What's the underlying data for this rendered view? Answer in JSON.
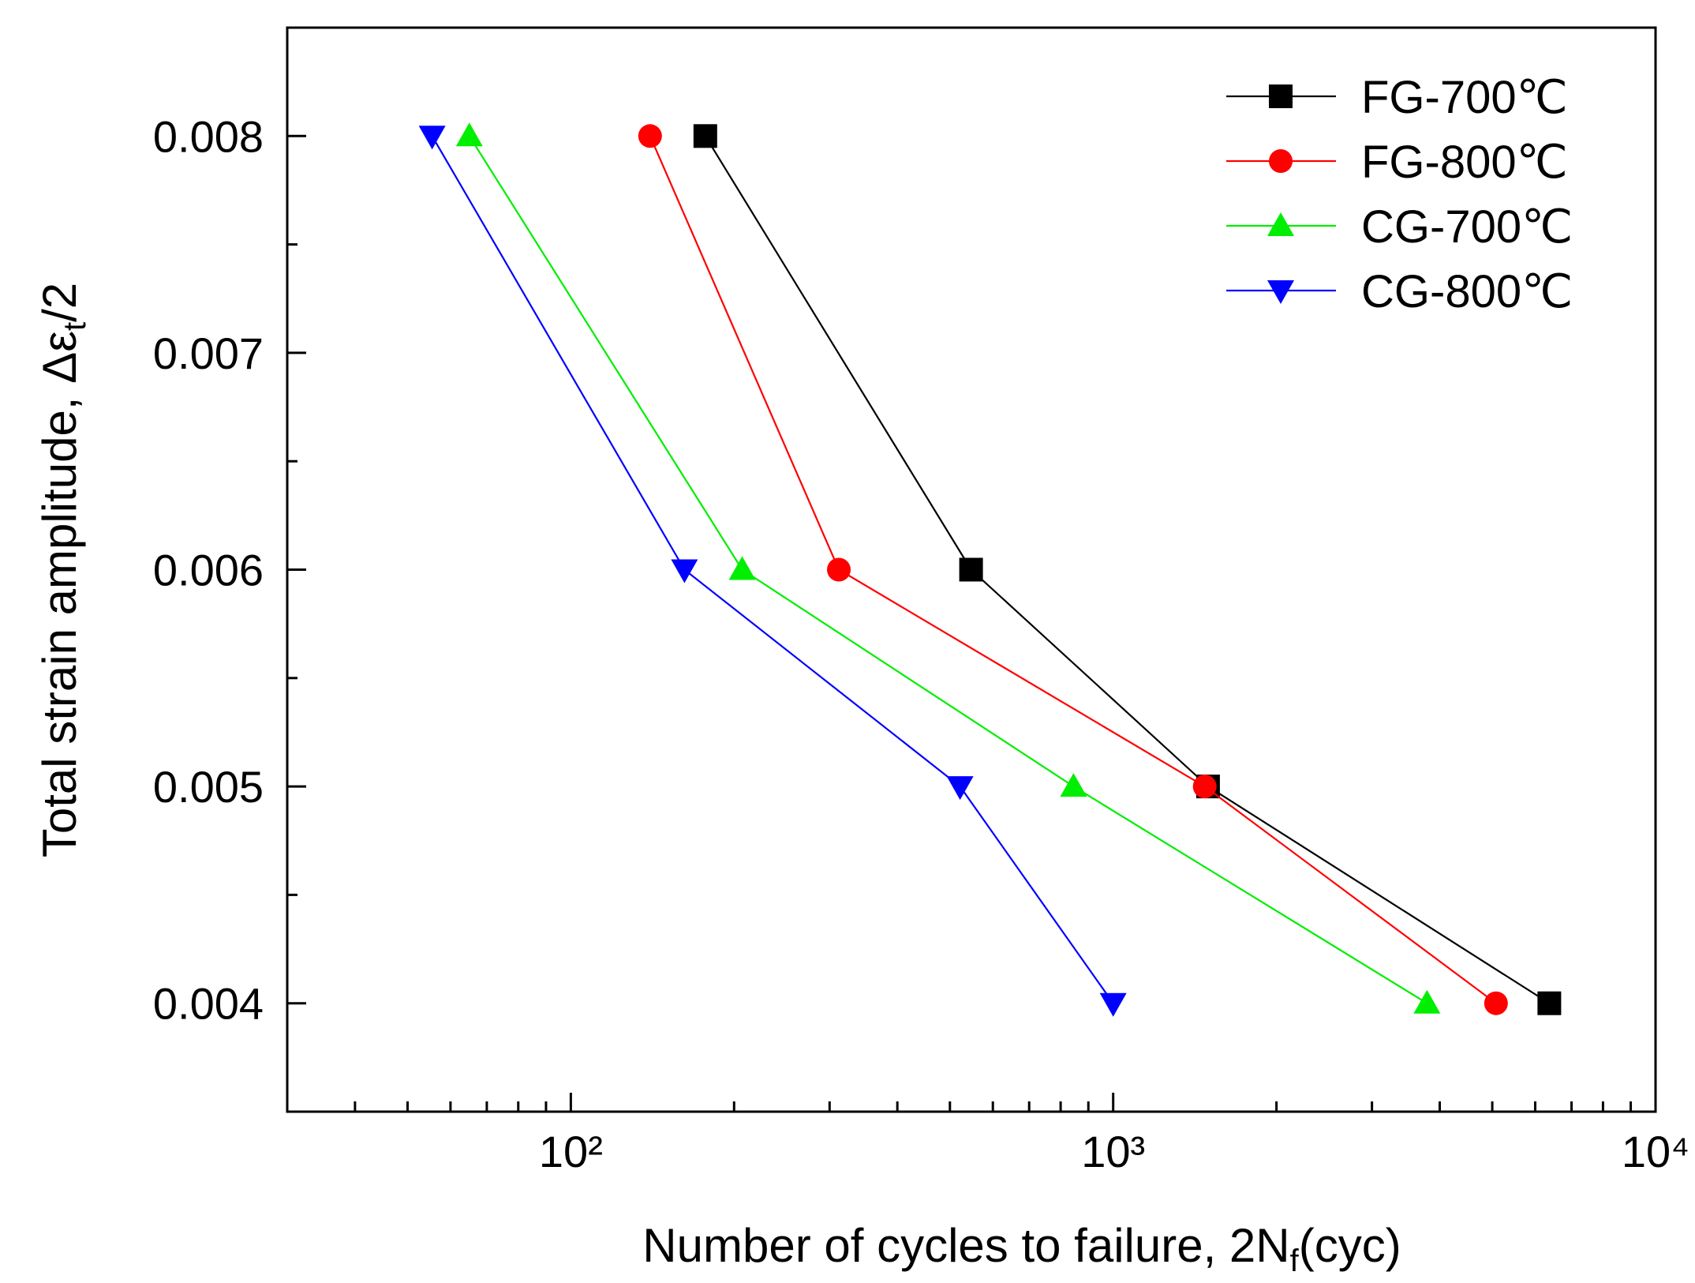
{
  "chart_data": {
    "type": "line",
    "xlabel": [
      "Number of cycles to failure, 2N",
      "f",
      "(cyc)"
    ],
    "ylabel": [
      "Total strain amplitude, Δε",
      "t",
      "/2"
    ],
    "xscale": "log",
    "xlim": [
      30,
      10000
    ],
    "xticks": [
      {
        "value": 100,
        "label": "10²"
      },
      {
        "value": 1000,
        "label": "10³"
      },
      {
        "value": 10000,
        "label": "10⁴"
      }
    ],
    "xminorticks": [
      40,
      50,
      60,
      70,
      80,
      90,
      200,
      300,
      400,
      500,
      600,
      700,
      800,
      900,
      2000,
      3000,
      4000,
      5000,
      6000,
      7000,
      8000,
      9000
    ],
    "ylim": [
      0.0035,
      0.0085
    ],
    "yticks": [
      0.004,
      0.005,
      0.006,
      0.007,
      0.008
    ],
    "yminorticks": [
      0.0045,
      0.0055,
      0.0065,
      0.0075
    ],
    "legend": "upper right",
    "series": [
      {
        "name": "FG-700℃",
        "color": "#000000",
        "marker": "square",
        "x": [
          177,
          547,
          1496,
          6370
        ],
        "values": [
          0.008,
          0.006,
          0.005,
          0.004
        ]
      },
      {
        "name": "FG-800℃",
        "color": "#ff0000",
        "marker": "circle",
        "x": [
          140,
          312,
          1475,
          5080
        ],
        "values": [
          0.008,
          0.006,
          0.005,
          0.004
        ]
      },
      {
        "name": "CG-700℃",
        "color": "#00ee00",
        "marker": "triangle-up",
        "x": [
          65,
          207,
          845,
          3790
        ],
        "values": [
          0.008,
          0.006,
          0.005,
          0.004
        ]
      },
      {
        "name": "CG-800℃",
        "color": "#0000ff",
        "marker": "triangle-down",
        "x": [
          55.5,
          162,
          522,
          1000
        ],
        "values": [
          0.008,
          0.006,
          0.005,
          0.004
        ]
      }
    ]
  }
}
